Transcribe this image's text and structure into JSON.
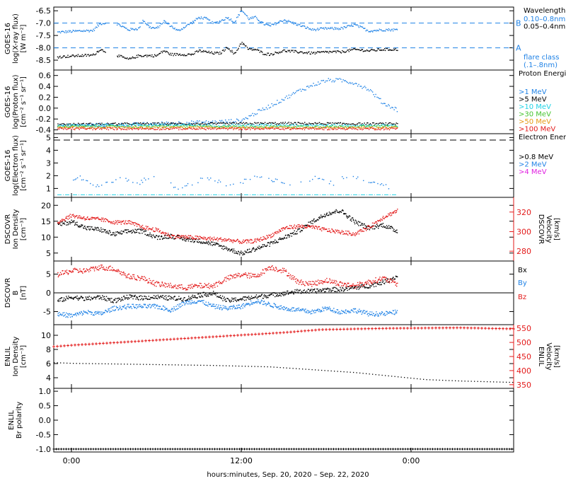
{
  "xaxis": {
    "title": "hours:minutes, Sep. 20, 2020 – Sep. 22, 2020",
    "range": [
      -2.5,
      62.5
    ],
    "ticks": [
      {
        "v": 0,
        "label": "0:00"
      },
      {
        "v": 24,
        "label": "12:00"
      },
      {
        "v": 48,
        "label": "0:00"
      }
    ]
  },
  "panels": [
    {
      "id": "xray",
      "ylabel": [
        "GOES-16",
        "log(X-ray flux)",
        "[W m⁻²]"
      ],
      "yrange": [
        -8.9,
        -6.35
      ],
      "yticks": [
        -6.5,
        -7.0,
        -7.5,
        -8.0,
        -8.5
      ],
      "ytick_labels": [
        "-6.5",
        "-7.0",
        "-7.5",
        "-8.0",
        "-8.5"
      ],
      "refs": [
        {
          "y": -7.0,
          "label": "B"
        },
        {
          "y": -8.0,
          "label": "A"
        }
      ],
      "legend_title": "Wavelength",
      "legend": [
        {
          "text": "0.10–0.8nm",
          "color": "#1f82e6"
        },
        {
          "text": "0.05–0.4nm",
          "color": "#000000"
        },
        {
          "text": "flare class",
          "color": "#1f82e6"
        },
        {
          "text": "(.1–.8nm)",
          "color": "#1f82e6"
        }
      ]
    },
    {
      "id": "proton",
      "ylabel": [
        "GOES-16",
        "log(Proton flux)",
        "[cm⁻² s⁻¹ sr⁻¹]"
      ],
      "yrange": [
        -0.47,
        0.7
      ],
      "yticks": [
        0.6,
        0.4,
        0.2,
        0.0,
        -0.2,
        -0.4
      ],
      "ytick_labels": [
        "0.6",
        "0.4",
        "0.2",
        "0.0",
        "-0.2",
        "-0.4"
      ],
      "legend_title": "Proton Energies",
      "legend": [
        {
          "text": ">1 MeV",
          "color": "#1f82e6"
        },
        {
          "text": ">5 MeV",
          "color": "#000000"
        },
        {
          "text": ">10 MeV",
          "color": "#22d3e6"
        },
        {
          "text": ">30 MeV",
          "color": "#46c430"
        },
        {
          "text": ">50 MeV",
          "color": "#e69a14"
        },
        {
          "text": ">100 MeV",
          "color": "#e31a1a"
        }
      ]
    },
    {
      "id": "electron",
      "ylabel": [
        "GOES-16",
        "log(Electron flux)",
        "[cm⁻² s⁻¹ sr⁻¹]"
      ],
      "yrange": [
        0.3,
        5.3
      ],
      "yticks": [
        5,
        4,
        3,
        2,
        1
      ],
      "ytick_labels": [
        "5",
        "4",
        "3",
        "2",
        "1"
      ],
      "legend_title": "Electron Energies",
      "legend": [
        {
          "text": ">0.8 MeV",
          "color": "#000000"
        },
        {
          "text": ">2 MeV",
          "color": "#1f82e6"
        },
        {
          "text": ">4 MeV",
          "color": "#e01fe0"
        }
      ]
    },
    {
      "id": "plasma",
      "ylabel": [
        "DSCOVR",
        "Ion Density",
        "[cm⁻³]"
      ],
      "ylabel_right": [
        "DSCOVR",
        "Velocity",
        "[km/s]"
      ],
      "yrange": [
        2.5,
        22.5
      ],
      "yticks": [
        20,
        15,
        10,
        5
      ],
      "ytick_labels": [
        "20",
        "15",
        "10",
        "5"
      ],
      "yrange_right": [
        270,
        335
      ],
      "yticks_right": [
        320,
        300,
        280
      ],
      "ytick_labels_right": [
        "320",
        "300",
        "280"
      ]
    },
    {
      "id": "mag",
      "ylabel": [
        "DSCOVR",
        "B",
        "[nT]"
      ],
      "yrange": [
        -8.5,
        8.5
      ],
      "yticks": [
        5,
        0,
        -5
      ],
      "ytick_labels": [
        "5",
        "0",
        "-5"
      ],
      "zero_line": true,
      "legend": [
        {
          "text": "Bx",
          "color": "#000000"
        },
        {
          "text": "By",
          "color": "#1f82e6"
        },
        {
          "text": "Bz",
          "color": "#e31a1a"
        }
      ]
    },
    {
      "id": "enlil",
      "ylabel": [
        "ENLIL",
        "Ion Density",
        "[cm⁻³]"
      ],
      "ylabel_right": [
        "ENLIL",
        "Velocity",
        "[km/s]"
      ],
      "yrange": [
        2.5,
        11.5
      ],
      "yticks": [
        10,
        8,
        6,
        4
      ],
      "ytick_labels": [
        "10",
        "8",
        "6",
        "4"
      ],
      "yrange_right": [
        337,
        563
      ],
      "yticks_right": [
        550,
        500,
        450,
        400,
        350
      ],
      "ytick_labels_right": [
        "550",
        "500",
        "450",
        "400",
        "350"
      ]
    },
    {
      "id": "polarity",
      "ylabel": [
        "ENLIL",
        "Br polarity"
      ],
      "yrange": [
        -1.1,
        1.1
      ],
      "yticks": [
        1.0,
        0.5,
        0.0,
        -0.5,
        -1.0
      ],
      "ytick_labels": [
        "1.0",
        "0.5",
        "0.0",
        "-0.5",
        "-1.0"
      ]
    }
  ],
  "colors": {
    "blue": "#1f82e6",
    "black": "#000000",
    "red": "#e31a1a",
    "cyan": "#22d3e6",
    "green": "#46c430",
    "orange": "#e69a14",
    "magenta": "#e01fe0"
  },
  "chart_data": [
    {
      "type": "scatter",
      "panel": "xray",
      "series": [
        {
          "name": "0.10–0.8nm",
          "x": [
            -2,
            1,
            3,
            4,
            6,
            8,
            9.5,
            10,
            11,
            12,
            13,
            14,
            15,
            17,
            18,
            19,
            20,
            21,
            22,
            23,
            24,
            25,
            26,
            27,
            28,
            30,
            32,
            34,
            36,
            38,
            40,
            42,
            44,
            46
          ],
          "y": [
            -7.35,
            -7.3,
            -7.28,
            -7.0,
            -6.95,
            -7.25,
            -7.2,
            -6.85,
            -7.15,
            -7.2,
            -6.9,
            -7.1,
            -7.3,
            -6.95,
            -6.75,
            -6.8,
            -7.0,
            -6.9,
            -6.75,
            -6.95,
            -6.45,
            -6.8,
            -6.75,
            -7.0,
            -7.1,
            -6.85,
            -7.05,
            -7.25,
            -7.2,
            -7.2,
            -7.05,
            -7.3,
            -7.25,
            -7.25
          ]
        },
        {
          "name": "0.05–0.4nm",
          "x": [
            -2,
            1,
            3,
            4,
            6,
            8,
            9.5,
            10,
            11,
            12,
            13,
            14,
            15,
            17,
            18,
            19,
            20,
            21,
            22,
            23,
            24,
            25,
            26,
            27,
            28,
            30,
            32,
            34,
            36,
            38,
            40,
            42,
            44,
            46
          ],
          "y": [
            -8.35,
            -8.3,
            -8.28,
            -8.05,
            -8.25,
            -8.45,
            -8.3,
            -8.3,
            -8.3,
            -8.3,
            -8.1,
            -8.25,
            -8.25,
            -8.25,
            -8.1,
            -8.15,
            -8.2,
            -8.2,
            -7.95,
            -8.25,
            -7.75,
            -8.05,
            -8.05,
            -8.2,
            -8.25,
            -8.1,
            -8.15,
            -8.2,
            -8.15,
            -8.15,
            -8.05,
            -8.1,
            -8.05,
            -8.05
          ]
        }
      ]
    },
    {
      "type": "scatter",
      "panel": "proton",
      "series": [
        {
          "name": ">1 MeV",
          "x": [
            -2,
            4,
            8,
            12,
            16,
            20,
            24,
            26,
            28,
            30,
            32,
            34,
            36,
            38,
            40,
            42,
            44,
            46
          ],
          "y": [
            -0.32,
            -0.3,
            -0.3,
            -0.28,
            -0.26,
            -0.25,
            -0.22,
            -0.08,
            0.05,
            0.18,
            0.32,
            0.43,
            0.52,
            0.52,
            0.47,
            0.35,
            0.1,
            -0.02
          ]
        },
        {
          "name": ">5 MeV",
          "x": [
            -2,
            10,
            20,
            30,
            40,
            46
          ],
          "y": [
            -0.29,
            -0.28,
            -0.28,
            -0.27,
            -0.28,
            -0.28
          ]
        },
        {
          "name": ">10 MeV",
          "x": [
            -2,
            10,
            20,
            30,
            40,
            46
          ],
          "y": [
            -0.31,
            -0.3,
            -0.31,
            -0.3,
            -0.31,
            -0.31
          ]
        },
        {
          "name": ">30 MeV",
          "x": [
            -2,
            10,
            20,
            30,
            40,
            46
          ],
          "y": [
            -0.33,
            -0.33,
            -0.33,
            -0.33,
            -0.33,
            -0.33
          ]
        },
        {
          "name": ">50 MeV",
          "x": [
            -2,
            10,
            20,
            30,
            40,
            46
          ],
          "y": [
            -0.35,
            -0.35,
            -0.35,
            -0.35,
            -0.35,
            -0.35
          ]
        },
        {
          "name": ">100 MeV",
          "x": [
            -2,
            10,
            20,
            30,
            40,
            46
          ],
          "y": [
            -0.37,
            -0.37,
            -0.37,
            -0.37,
            -0.37,
            -0.37
          ]
        }
      ]
    },
    {
      "type": "scatter",
      "panel": "electron",
      "series": [
        {
          "name": ">0.8 MeV",
          "x": [
            -2.5,
            62.5
          ],
          "y": [
            4.8,
            4.8
          ]
        },
        {
          "name": ">2 MeV",
          "x": [
            -1,
            1,
            3,
            5,
            7,
            9,
            11,
            13,
            15,
            17,
            19,
            21,
            23,
            25,
            27,
            29,
            31,
            33,
            35,
            37,
            39,
            41,
            43,
            45
          ],
          "y": [
            1.6,
            2.0,
            1.2,
            1.5,
            1.9,
            1.3,
            2.0,
            1.6,
            1.1,
            1.4,
            1.9,
            1.5,
            1.2,
            1.8,
            2.0,
            1.6,
            1.3,
            1.7,
            1.9,
            1.4,
            2.1,
            1.8,
            1.5,
            1.1
          ]
        },
        {
          "name": ">4 MeV",
          "x": [
            -2,
            46
          ],
          "y": [
            0.5,
            0.5
          ]
        }
      ]
    },
    {
      "type": "scatter",
      "panel": "plasma",
      "series": [
        {
          "name": "Ion Density",
          "axis": "left",
          "x": [
            -2,
            0,
            2,
            4,
            6,
            8,
            10,
            12,
            14,
            16,
            18,
            20,
            22,
            24,
            26,
            28,
            30,
            32,
            34,
            36,
            38,
            40,
            42,
            44,
            46
          ],
          "y": [
            14,
            15,
            13,
            12.5,
            11,
            12,
            12,
            10,
            10.5,
            9.5,
            9,
            8,
            6.5,
            5,
            6.5,
            8,
            10,
            12,
            15,
            17.5,
            18.5,
            15,
            13,
            14,
            12
          ]
        },
        {
          "name": "Velocity",
          "axis": "right",
          "x": [
            -2,
            0,
            2,
            4,
            6,
            8,
            10,
            12,
            14,
            16,
            18,
            20,
            22,
            24,
            26,
            28,
            30,
            32,
            34,
            36,
            38,
            40,
            42,
            44,
            46
          ],
          "y": [
            310,
            317,
            314,
            313,
            310,
            310,
            305,
            302,
            296,
            295,
            294,
            293,
            292,
            290,
            291,
            296,
            304,
            306,
            305,
            302,
            300,
            298,
            305,
            315,
            322
          ]
        }
      ]
    },
    {
      "type": "scatter",
      "panel": "mag",
      "series": [
        {
          "name": "Bx",
          "x": [
            -2,
            0,
            2,
            4,
            6,
            8,
            10,
            12,
            14,
            16,
            18,
            20,
            22,
            24,
            26,
            28,
            30,
            32,
            34,
            36,
            38,
            40,
            42,
            44,
            46
          ],
          "y": [
            -2,
            -1,
            -1.5,
            -1,
            -2,
            -1,
            -1.2,
            -1,
            -1.3,
            -1.5,
            -0.5,
            0,
            -2,
            -1.5,
            -1,
            -0.5,
            0,
            0.5,
            0.5,
            1,
            1,
            1.5,
            2,
            3,
            4.5
          ]
        },
        {
          "name": "By",
          "x": [
            -2,
            0,
            2,
            4,
            6,
            8,
            10,
            12,
            14,
            16,
            18,
            20,
            22,
            24,
            26,
            28,
            30,
            32,
            34,
            36,
            38,
            40,
            42,
            44,
            46
          ],
          "y": [
            -5.5,
            -6,
            -5,
            -5.5,
            -4,
            -3.5,
            -3.5,
            -3.5,
            -4.5,
            -2.5,
            -2,
            -3.5,
            -4,
            -3.5,
            -2,
            -3,
            -4,
            -4.5,
            -5,
            -4,
            -5,
            -4.5,
            -5.5,
            -5.5,
            -5
          ]
        },
        {
          "name": "Bz",
          "x": [
            -2,
            0,
            2,
            4,
            6,
            8,
            10,
            12,
            14,
            16,
            18,
            20,
            22,
            24,
            26,
            28,
            30,
            32,
            34,
            36,
            38,
            40,
            42,
            44,
            46
          ],
          "y": [
            5,
            6,
            6,
            7,
            6.5,
            4.5,
            4,
            2.5,
            2,
            1.5,
            2,
            2,
            4,
            5,
            4.5,
            7,
            6,
            3,
            2.5,
            3.5,
            2.5,
            2,
            3,
            4,
            2.5
          ]
        }
      ]
    },
    {
      "type": "line",
      "panel": "enlil",
      "series": [
        {
          "name": "Ion Density",
          "axis": "left",
          "x": [
            -2.5,
            0,
            10,
            20,
            28,
            34,
            40,
            46,
            50,
            55,
            62.5
          ],
          "y": [
            6.2,
            6.1,
            5.95,
            5.8,
            5.6,
            5.2,
            4.8,
            4.2,
            3.8,
            3.6,
            3.4
          ]
        },
        {
          "name": "Velocity",
          "axis": "right",
          "x": [
            -2.5,
            0,
            10,
            20,
            30,
            35,
            40,
            45,
            50,
            55,
            62.5
          ],
          "y": [
            485,
            490,
            505,
            520,
            535,
            545,
            548,
            550,
            551,
            552,
            548
          ]
        }
      ]
    },
    {
      "type": "scatter",
      "panel": "polarity",
      "series": [
        {
          "name": "Br polarity",
          "x": [
            -2.5,
            62.5
          ],
          "y": [
            -1.0,
            -1.0
          ]
        }
      ]
    }
  ]
}
